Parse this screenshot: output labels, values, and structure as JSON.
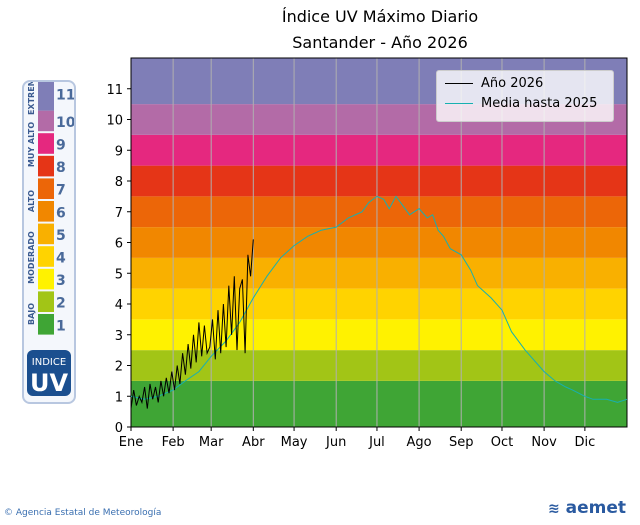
{
  "header": {
    "title": "Índice UV Máximo Diario",
    "subtitle": "Santander - Año 2026"
  },
  "legend": [
    {
      "label": "Año 2026",
      "color": "#000000"
    },
    {
      "label": "Media hasta 2025",
      "color": "#17b0b0"
    }
  ],
  "uv_scale": {
    "categories": [
      {
        "name": "BAJO",
        "levels": [
          "1",
          "2"
        ]
      },
      {
        "name": "MODERADO",
        "levels": [
          "3",
          "4",
          "5"
        ]
      },
      {
        "name": "ALTO",
        "levels": [
          "6",
          "7"
        ]
      },
      {
        "name": "MUY ALTO",
        "levels": [
          "8",
          "9",
          "10"
        ]
      },
      {
        "name": "EXTREMO",
        "levels": [
          "11+"
        ]
      }
    ],
    "badge_top": "INDICE",
    "badge_bottom": "UV"
  },
  "footer": {
    "agency": "Agencia Estatal de Meteorología",
    "brand": "aemet"
  },
  "colors": {
    "band": [
      "#3fa535",
      "#a2c516",
      "#fff200",
      "#ffd300",
      "#f9b000",
      "#f18700",
      "#ec6608",
      "#e53517",
      "#e5287f",
      "#b36ba7",
      "#7f7eb7"
    ]
  },
  "chart_data": {
    "type": "line",
    "title": "Índice UV Máximo Diario",
    "subtitle": "Santander - Año 2026",
    "xlabel": "",
    "ylabel": "",
    "ylim": [
      0,
      12
    ],
    "xlim_days": [
      0,
      365
    ],
    "yticks": [
      0,
      1,
      2,
      3,
      4,
      5,
      6,
      7,
      8,
      9,
      10,
      11
    ],
    "xtick_labels": [
      "Ene",
      "Feb",
      "Mar",
      "Abr",
      "May",
      "Jun",
      "Jul",
      "Ago",
      "Sep",
      "Oct",
      "Nov",
      "Dic"
    ],
    "xtick_days": [
      0,
      31,
      59,
      90,
      120,
      151,
      181,
      212,
      243,
      273,
      304,
      334
    ],
    "grid": "vertical at month ticks",
    "legend_position": "top-right",
    "series": [
      {
        "name": "Año 2026",
        "x": [
          0,
          2,
          4,
          6,
          8,
          10,
          12,
          14,
          16,
          18,
          20,
          22,
          24,
          26,
          28,
          30,
          32,
          34,
          36,
          38,
          40,
          42,
          44,
          46,
          48,
          50,
          52,
          54,
          56,
          58,
          60,
          62,
          64,
          66,
          68,
          70,
          72,
          74,
          76,
          78,
          80,
          82,
          84,
          86,
          88,
          90
        ],
        "values": [
          0.6,
          1.2,
          0.7,
          1.0,
          0.8,
          1.3,
          0.6,
          1.4,
          0.9,
          1.3,
          0.8,
          1.5,
          1.0,
          1.6,
          1.1,
          1.8,
          1.2,
          2.0,
          1.4,
          2.4,
          1.7,
          2.7,
          1.9,
          3.0,
          2.1,
          3.4,
          2.3,
          3.3,
          2.4,
          2.6,
          3.5,
          2.2,
          3.8,
          2.4,
          4.0,
          2.6,
          4.6,
          3.0,
          4.9,
          2.5,
          4.5,
          4.8,
          2.4,
          5.6,
          4.9,
          6.1
        ]
      },
      {
        "name": "Media hasta 2025",
        "x": [
          0,
          10,
          20,
          31,
          40,
          50,
          59,
          70,
          80,
          90,
          100,
          110,
          120,
          130,
          140,
          151,
          160,
          170,
          175,
          181,
          186,
          190,
          195,
          200,
          205,
          212,
          218,
          222,
          226,
          230,
          235,
          243,
          250,
          255,
          260,
          265,
          273,
          280,
          290,
          300,
          304,
          312,
          320,
          325,
          334,
          340,
          350,
          358,
          365
        ],
        "values": [
          1.0,
          0.9,
          1.0,
          1.2,
          1.5,
          1.8,
          2.3,
          2.8,
          3.4,
          4.2,
          4.9,
          5.5,
          5.9,
          6.2,
          6.4,
          6.5,
          6.8,
          7.0,
          7.3,
          7.5,
          7.4,
          7.1,
          7.5,
          7.2,
          6.9,
          7.1,
          6.8,
          6.9,
          6.4,
          6.2,
          5.8,
          5.6,
          5.1,
          4.6,
          4.4,
          4.2,
          3.8,
          3.1,
          2.5,
          2.0,
          1.8,
          1.5,
          1.3,
          1.2,
          1.0,
          0.9,
          0.9,
          0.8,
          0.9
        ]
      }
    ]
  }
}
